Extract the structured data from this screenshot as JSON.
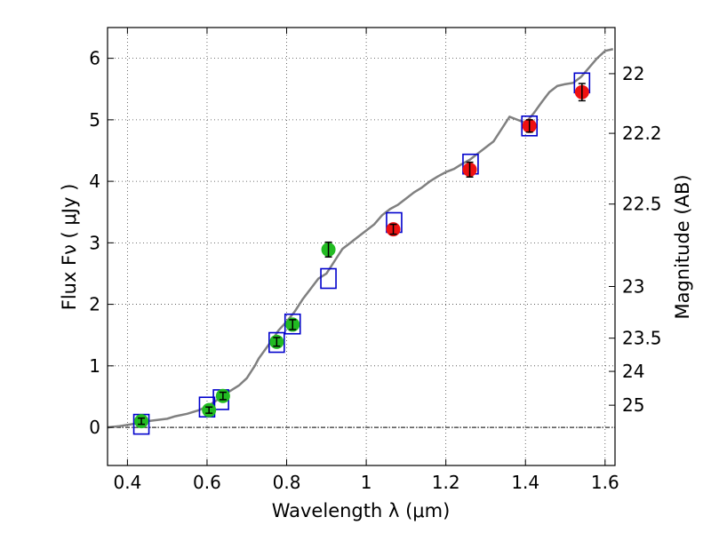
{
  "chart_data": {
    "type": "scatter",
    "xlabel": "Wavelength  λ (μm)",
    "ylabel_left": "Flux  Fν  ( μJy )",
    "ylabel_right": "Magnitude (AB)",
    "xlim": [
      0.35,
      1.625
    ],
    "ylim": [
      -0.62,
      6.5
    ],
    "x_ticks": [
      0.4,
      0.6,
      0.8,
      1.0,
      1.2,
      1.4,
      1.6
    ],
    "x_tick_labels": [
      "0.4",
      "0.6",
      "0.8",
      "1",
      "1.2",
      "1.4",
      "1.6"
    ],
    "y_ticks": [
      0,
      1,
      2,
      3,
      4,
      5,
      6
    ],
    "y_tick_labels": [
      "0",
      "1",
      "2",
      "3",
      "4",
      "5",
      "6"
    ],
    "right_ticks": [
      {
        "label": "22",
        "flux": 5.75
      },
      {
        "label": "22.2",
        "flux": 4.78
      },
      {
        "label": "22.5",
        "flux": 3.63
      },
      {
        "label": "23",
        "flux": 2.29
      },
      {
        "label": "23.5",
        "flux": 1.45
      },
      {
        "label": "24",
        "flux": 0.91
      },
      {
        "label": "25",
        "flux": 0.36
      }
    ],
    "grid": true,
    "colors": {
      "model": "#808080",
      "model_box": "#0000cc",
      "green_points": "#22bb22",
      "red_points": "#ee1111",
      "error_bars": "#000000"
    },
    "model_spectrum": {
      "x": [
        0.35,
        0.38,
        0.42,
        0.45,
        0.5,
        0.52,
        0.55,
        0.58,
        0.6,
        0.62,
        0.64,
        0.66,
        0.68,
        0.7,
        0.71,
        0.72,
        0.73,
        0.75,
        0.77,
        0.78,
        0.8,
        0.82,
        0.84,
        0.86,
        0.88,
        0.9,
        0.92,
        0.94,
        0.96,
        0.98,
        1.0,
        1.02,
        1.04,
        1.06,
        1.08,
        1.1,
        1.12,
        1.14,
        1.16,
        1.18,
        1.2,
        1.22,
        1.24,
        1.26,
        1.28,
        1.3,
        1.32,
        1.34,
        1.36,
        1.38,
        1.4,
        1.42,
        1.44,
        1.46,
        1.48,
        1.5,
        1.52,
        1.54,
        1.56,
        1.58,
        1.6,
        1.62
      ],
      "y": [
        0.0,
        0.02,
        0.06,
        0.1,
        0.14,
        0.18,
        0.22,
        0.28,
        0.34,
        0.42,
        0.52,
        0.6,
        0.68,
        0.8,
        0.9,
        1.0,
        1.12,
        1.3,
        1.48,
        1.58,
        1.72,
        1.88,
        2.08,
        2.25,
        2.42,
        2.5,
        2.7,
        2.9,
        3.0,
        3.1,
        3.2,
        3.3,
        3.45,
        3.55,
        3.62,
        3.72,
        3.82,
        3.9,
        4.0,
        4.08,
        4.15,
        4.2,
        4.28,
        4.35,
        4.45,
        4.55,
        4.65,
        4.85,
        5.05,
        5.0,
        4.95,
        5.1,
        5.28,
        5.45,
        5.55,
        5.58,
        5.6,
        5.7,
        5.85,
        6.0,
        6.12,
        6.15
      ]
    },
    "model_boxes": [
      {
        "x": 0.435,
        "y": 0.05
      },
      {
        "x": 0.6,
        "y": 0.33
      },
      {
        "x": 0.635,
        "y": 0.45
      },
      {
        "x": 0.775,
        "y": 1.38
      },
      {
        "x": 0.815,
        "y": 1.68
      },
      {
        "x": 0.905,
        "y": 2.42
      },
      {
        "x": 1.07,
        "y": 3.33
      },
      {
        "x": 1.262,
        "y": 4.28
      },
      {
        "x": 1.41,
        "y": 4.9
      },
      {
        "x": 1.542,
        "y": 5.6
      }
    ],
    "series": [
      {
        "color_key": "green_points",
        "points": [
          {
            "x": 0.435,
            "y": 0.1,
            "err": 0.05
          },
          {
            "x": 0.605,
            "y": 0.28,
            "err": 0.05
          },
          {
            "x": 0.64,
            "y": 0.51,
            "err": 0.06
          },
          {
            "x": 0.775,
            "y": 1.39,
            "err": 0.07
          },
          {
            "x": 0.815,
            "y": 1.67,
            "err": 0.08
          },
          {
            "x": 0.905,
            "y": 2.89,
            "err": 0.12
          }
        ]
      },
      {
        "color_key": "red_points",
        "points": [
          {
            "x": 1.068,
            "y": 3.22,
            "err": 0.08
          },
          {
            "x": 1.26,
            "y": 4.19,
            "err": 0.12
          },
          {
            "x": 1.41,
            "y": 4.9,
            "err": 0.1
          },
          {
            "x": 1.542,
            "y": 5.45,
            "err": 0.14
          }
        ]
      }
    ]
  }
}
